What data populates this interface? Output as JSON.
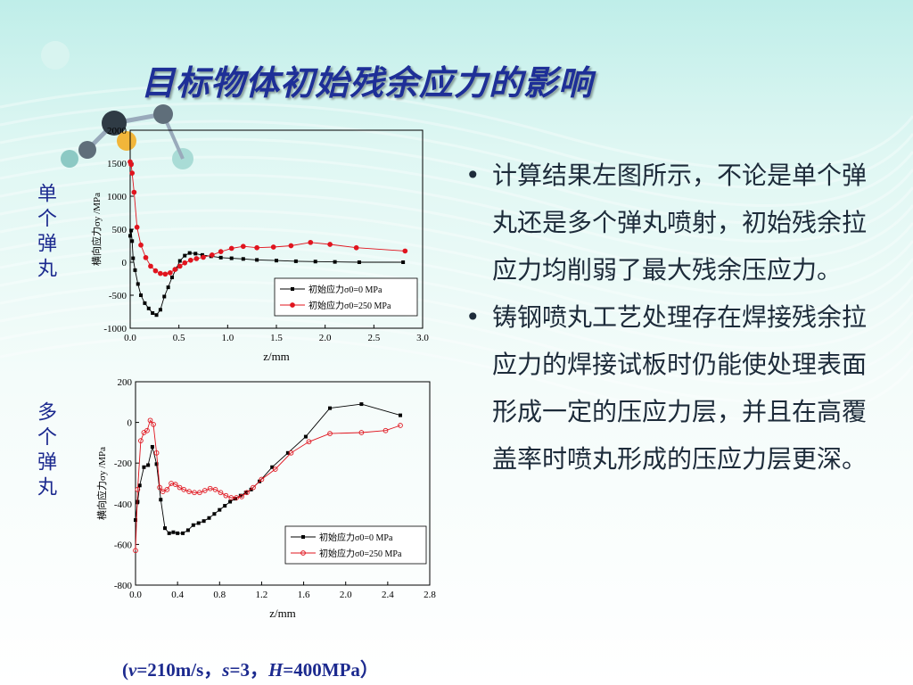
{
  "slide": {
    "title": "目标物体初始残余应力的影响",
    "label_single": "单个弹丸",
    "label_multi": "多个弹丸",
    "bullets": [
      "计算结果左图所示，不论是单个弹丸还是多个弹丸喷射，初始残余拉应力均削弱了最大残余压应力。",
      "铸钢喷丸工艺处理存在焊接残余拉应力的焊接试板时仍能使处理表面形成一定的压应力层，并且在高覆盖率时喷丸形成的压应力层更深。"
    ],
    "bullet_symbol": "•",
    "params": {
      "open": "(",
      "v_sym": "v",
      "v_val": "=210m/s，",
      "s_sym": "s",
      "s_val": "=3，",
      "h_sym": "H",
      "h_val": "=400MPa）"
    },
    "colors": {
      "title": "#1e2f97",
      "series_black": "#000000",
      "series_red": "#e0141e",
      "grey_line": "#808080"
    }
  },
  "chart_data": [
    {
      "type": "line",
      "xlabel": "z/mm",
      "ylabel": "横向应力σy /MPa",
      "xlim": [
        0,
        3.0
      ],
      "ylim": [
        -1000,
        2000
      ],
      "xticks": [
        "0.0",
        "0.5",
        "1.0",
        "1.5",
        "2.0",
        "2.5",
        "3.0"
      ],
      "yticks": [
        "-1000",
        "-500",
        "0",
        "500",
        "1000",
        "1500",
        "2000"
      ],
      "legend_position": "lower-right",
      "series": [
        {
          "name": "初始应力σ0=0 MPa",
          "marker": "square",
          "points": [
            [
              0,
              400
            ],
            [
              0.01,
              480
            ],
            [
              0.02,
              320
            ],
            [
              0.03,
              60
            ],
            [
              0.05,
              -120
            ],
            [
              0.08,
              -330
            ],
            [
              0.11,
              -500
            ],
            [
              0.15,
              -620
            ],
            [
              0.19,
              -700
            ],
            [
              0.23,
              -770
            ],
            [
              0.27,
              -800
            ],
            [
              0.31,
              -720
            ],
            [
              0.35,
              -520
            ],
            [
              0.39,
              -380
            ],
            [
              0.43,
              -230
            ],
            [
              0.47,
              -100
            ],
            [
              0.51,
              20
            ],
            [
              0.56,
              100
            ],
            [
              0.61,
              140
            ],
            [
              0.67,
              130
            ],
            [
              0.74,
              110
            ],
            [
              0.83,
              90
            ],
            [
              0.93,
              70
            ],
            [
              1.04,
              60
            ],
            [
              1.16,
              50
            ],
            [
              1.3,
              35
            ],
            [
              1.5,
              25
            ],
            [
              1.7,
              15
            ],
            [
              1.9,
              10
            ],
            [
              2.1,
              5
            ],
            [
              2.35,
              0
            ],
            [
              2.8,
              0
            ]
          ]
        },
        {
          "name": "初始应力σ0=250 MPa",
          "marker": "circle",
          "points": [
            [
              0,
              1520
            ],
            [
              0.01,
              1480
            ],
            [
              0.02,
              1350
            ],
            [
              0.04,
              1060
            ],
            [
              0.07,
              530
            ],
            [
              0.11,
              260
            ],
            [
              0.16,
              70
            ],
            [
              0.21,
              -60
            ],
            [
              0.26,
              -130
            ],
            [
              0.31,
              -170
            ],
            [
              0.36,
              -180
            ],
            [
              0.41,
              -160
            ],
            [
              0.46,
              -110
            ],
            [
              0.51,
              -60
            ],
            [
              0.56,
              -10
            ],
            [
              0.62,
              30
            ],
            [
              0.68,
              55
            ],
            [
              0.75,
              75
            ],
            [
              0.84,
              110
            ],
            [
              0.93,
              160
            ],
            [
              1.04,
              210
            ],
            [
              1.16,
              240
            ],
            [
              1.3,
              220
            ],
            [
              1.47,
              230
            ],
            [
              1.65,
              250
            ],
            [
              1.85,
              300
            ],
            [
              2.05,
              270
            ],
            [
              2.32,
              220
            ],
            [
              2.82,
              170
            ]
          ]
        }
      ]
    },
    {
      "type": "line",
      "xlabel": "z/mm",
      "ylabel": "横向应力σy /MPa",
      "xlim": [
        0,
        2.8
      ],
      "ylim": [
        -800,
        200
      ],
      "xticks": [
        "0.0",
        "0.4",
        "0.8",
        "1.2",
        "1.6",
        "2.0",
        "2.4",
        "2.8"
      ],
      "yticks": [
        "-800",
        "-600",
        "-400",
        "-200",
        "0",
        "200"
      ],
      "legend_position": "lower-right",
      "series": [
        {
          "name": "初始应力σ0=0 MPa",
          "marker": "square",
          "points": [
            [
              0.0,
              -480
            ],
            [
              0.02,
              -390
            ],
            [
              0.04,
              -310
            ],
            [
              0.08,
              -220
            ],
            [
              0.12,
              -210
            ],
            [
              0.16,
              -120
            ],
            [
              0.2,
              -205
            ],
            [
              0.24,
              -380
            ],
            [
              0.28,
              -520
            ],
            [
              0.32,
              -545
            ],
            [
              0.36,
              -540
            ],
            [
              0.4,
              -545
            ],
            [
              0.45,
              -545
            ],
            [
              0.5,
              -530
            ],
            [
              0.55,
              -505
            ],
            [
              0.6,
              -495
            ],
            [
              0.65,
              -485
            ],
            [
              0.7,
              -470
            ],
            [
              0.75,
              -450
            ],
            [
              0.8,
              -430
            ],
            [
              0.85,
              -410
            ],
            [
              0.9,
              -390
            ],
            [
              0.95,
              -375
            ],
            [
              1.0,
              -360
            ],
            [
              1.05,
              -345
            ],
            [
              1.1,
              -330
            ],
            [
              1.18,
              -290
            ],
            [
              1.3,
              -220
            ],
            [
              1.45,
              -150
            ],
            [
              1.62,
              -70
            ],
            [
              1.85,
              70
            ],
            [
              2.15,
              90
            ],
            [
              2.52,
              35
            ]
          ]
        },
        {
          "name": "初始应力σ0=250 MPa",
          "marker": "circle",
          "points": [
            [
              0.0,
              -630
            ],
            [
              0.02,
              -330
            ],
            [
              0.05,
              -90
            ],
            [
              0.08,
              -50
            ],
            [
              0.11,
              -40
            ],
            [
              0.14,
              10
            ],
            [
              0.17,
              -10
            ],
            [
              0.2,
              -150
            ],
            [
              0.23,
              -320
            ],
            [
              0.26,
              -340
            ],
            [
              0.3,
              -330
            ],
            [
              0.34,
              -300
            ],
            [
              0.38,
              -305
            ],
            [
              0.42,
              -320
            ],
            [
              0.46,
              -330
            ],
            [
              0.51,
              -340
            ],
            [
              0.56,
              -345
            ],
            [
              0.61,
              -345
            ],
            [
              0.66,
              -335
            ],
            [
              0.71,
              -325
            ],
            [
              0.76,
              -330
            ],
            [
              0.81,
              -345
            ],
            [
              0.86,
              -360
            ],
            [
              0.91,
              -370
            ],
            [
              0.96,
              -370
            ],
            [
              1.01,
              -365
            ],
            [
              1.06,
              -345
            ],
            [
              1.12,
              -320
            ],
            [
              1.2,
              -280
            ],
            [
              1.33,
              -230
            ],
            [
              1.48,
              -150
            ],
            [
              1.65,
              -95
            ],
            [
              1.85,
              -55
            ],
            [
              2.15,
              -50
            ],
            [
              2.38,
              -40
            ],
            [
              2.52,
              -15
            ]
          ]
        }
      ]
    }
  ]
}
